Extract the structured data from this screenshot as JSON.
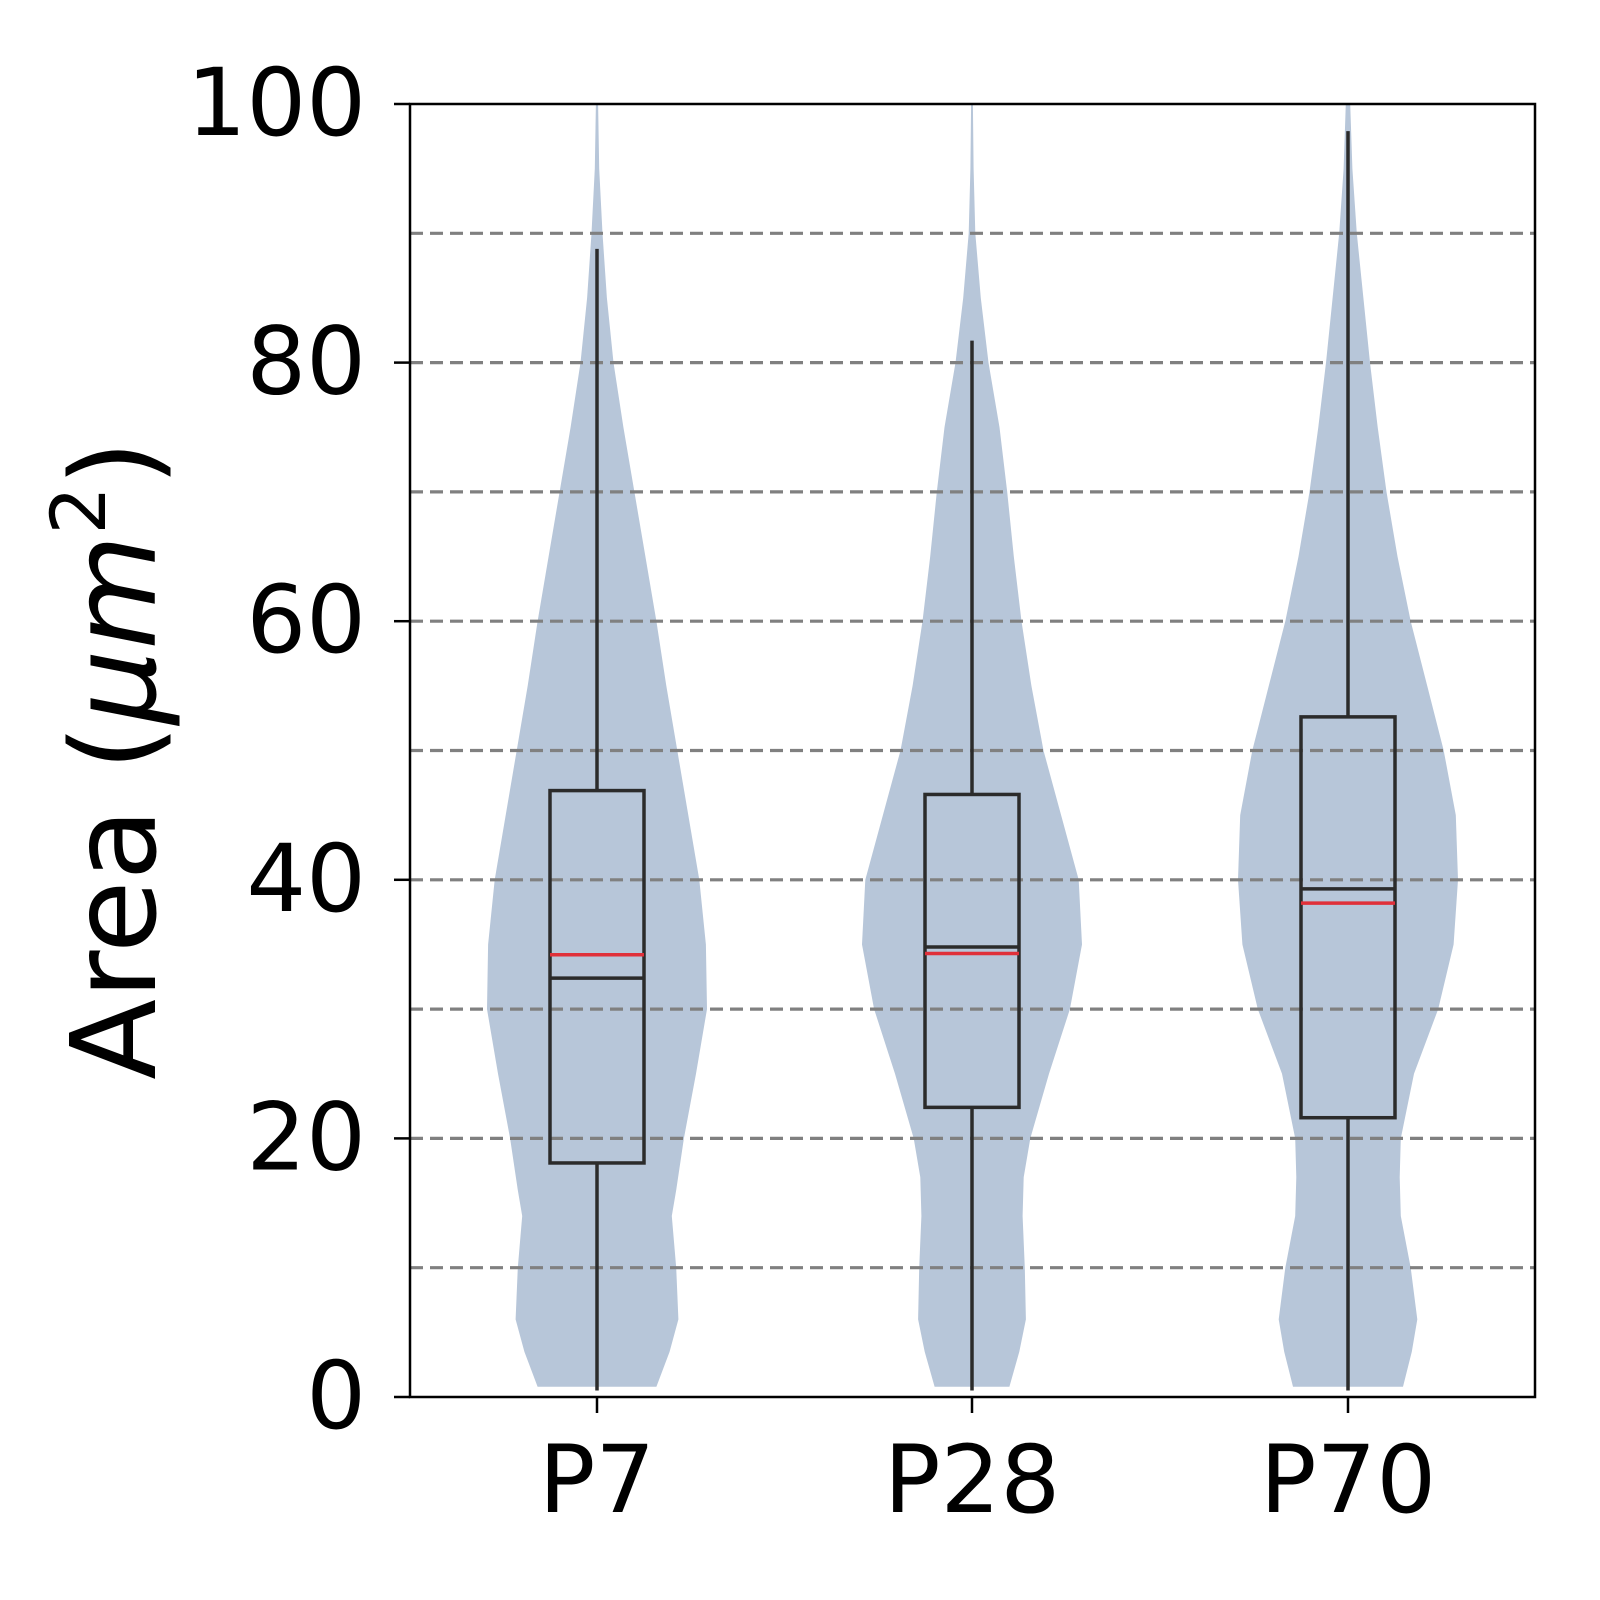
{
  "chart_data": {
    "type": "violin",
    "title": "",
    "xlabel": "",
    "ylabel": {
      "main": "Area (",
      "mu": "μ",
      "m": "m",
      "sup": "2",
      "close": ")"
    },
    "categories": [
      "P7",
      "P28",
      "P70"
    ],
    "ylim": [
      0,
      100
    ],
    "yticks": [
      0,
      20,
      40,
      60,
      80,
      100
    ],
    "grid_y": [
      10,
      20,
      30,
      40,
      50,
      60,
      70,
      80,
      90
    ],
    "grid": true,
    "colors": {
      "violin": "#b7c6d9",
      "box": "#2b2b2b",
      "mean": "#e0303a",
      "grid": "#808080",
      "axis": "#000000"
    },
    "boxes": [
      {
        "category": "P7",
        "whisker_low": 0.5,
        "q1": 18.1,
        "median": 32.4,
        "mean": 34.2,
        "q3": 46.9,
        "whisker_high": 88.8,
        "violin_max": 100
      },
      {
        "category": "P28",
        "whisker_low": 0.5,
        "q1": 22.4,
        "median": 34.8,
        "mean": 34.3,
        "q3": 46.6,
        "whisker_high": 81.7,
        "violin_max": 100
      },
      {
        "category": "P70",
        "whisker_low": 0.5,
        "q1": 21.6,
        "median": 39.3,
        "mean": 38.2,
        "q3": 52.6,
        "whisker_high": 97.9,
        "violin_max": 100
      }
    ],
    "violin_density": [
      {
        "category": "P7",
        "profile": [
          [
            0.8,
            0.54
          ],
          [
            3.5,
            0.66
          ],
          [
            6,
            0.74
          ],
          [
            10,
            0.72
          ],
          [
            14,
            0.68
          ],
          [
            16,
            0.72
          ],
          [
            20,
            0.79
          ],
          [
            25,
            0.9
          ],
          [
            30,
            1.0
          ],
          [
            35,
            0.99
          ],
          [
            40,
            0.93
          ],
          [
            45,
            0.83
          ],
          [
            50,
            0.73
          ],
          [
            55,
            0.63
          ],
          [
            60,
            0.54
          ],
          [
            65,
            0.44
          ],
          [
            70,
            0.34
          ],
          [
            75,
            0.24
          ],
          [
            80,
            0.15
          ],
          [
            85,
            0.09
          ],
          [
            90,
            0.05
          ],
          [
            95,
            0.02
          ],
          [
            100,
            0.01
          ]
        ]
      },
      {
        "category": "P28",
        "profile": [
          [
            0.8,
            0.34
          ],
          [
            3.5,
            0.43
          ],
          [
            6,
            0.49
          ],
          [
            10,
            0.48
          ],
          [
            14,
            0.46
          ],
          [
            17,
            0.47
          ],
          [
            20,
            0.53
          ],
          [
            25,
            0.7
          ],
          [
            30,
            0.89
          ],
          [
            35,
            1.0
          ],
          [
            40,
            0.97
          ],
          [
            45,
            0.81
          ],
          [
            50,
            0.65
          ],
          [
            55,
            0.54
          ],
          [
            60,
            0.45
          ],
          [
            65,
            0.38
          ],
          [
            70,
            0.32
          ],
          [
            75,
            0.25
          ],
          [
            80,
            0.15
          ],
          [
            85,
            0.08
          ],
          [
            90,
            0.03
          ],
          [
            95,
            0.015
          ],
          [
            100,
            0.008
          ]
        ]
      },
      {
        "category": "P70",
        "profile": [
          [
            0.8,
            0.5
          ],
          [
            3.5,
            0.58
          ],
          [
            6,
            0.63
          ],
          [
            10,
            0.57
          ],
          [
            14,
            0.48
          ],
          [
            17,
            0.47
          ],
          [
            20,
            0.48
          ],
          [
            25,
            0.6
          ],
          [
            30,
            0.82
          ],
          [
            35,
            0.96
          ],
          [
            40,
            1.0
          ],
          [
            45,
            0.98
          ],
          [
            50,
            0.87
          ],
          [
            55,
            0.72
          ],
          [
            60,
            0.57
          ],
          [
            65,
            0.45
          ],
          [
            70,
            0.35
          ],
          [
            75,
            0.27
          ],
          [
            80,
            0.2
          ],
          [
            85,
            0.14
          ],
          [
            90,
            0.08
          ],
          [
            95,
            0.04
          ],
          [
            100,
            0.02
          ]
        ]
      }
    ],
    "legend": "none"
  }
}
